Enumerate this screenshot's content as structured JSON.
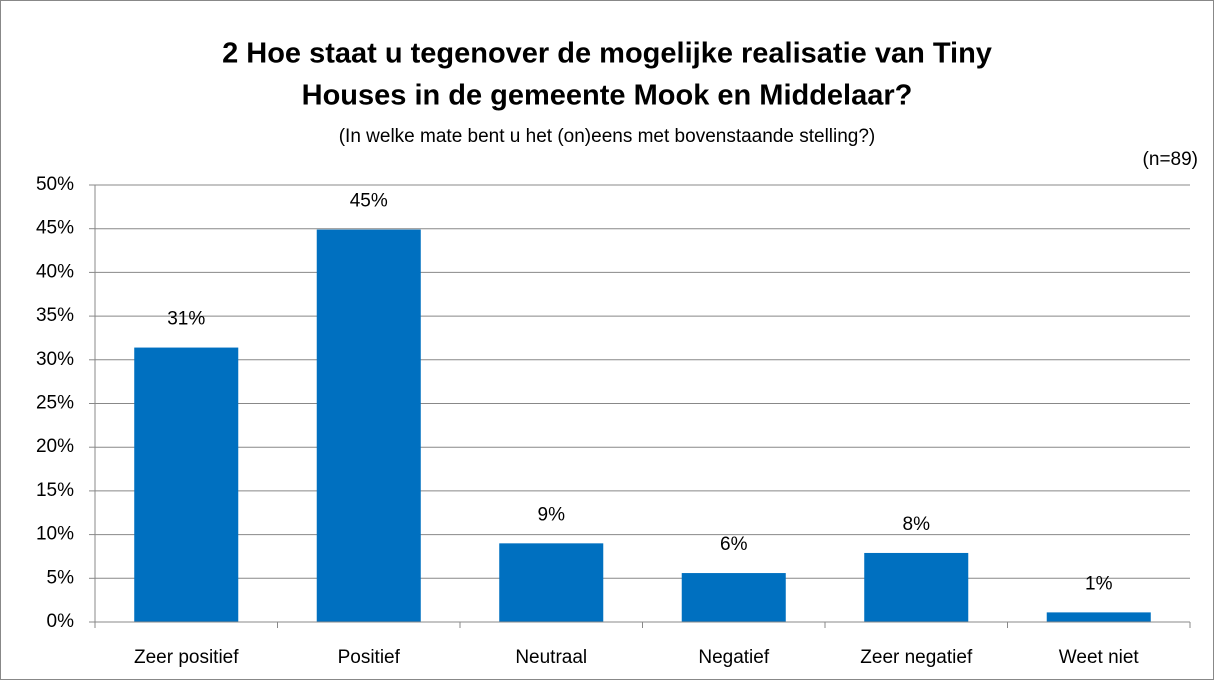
{
  "chart_data": {
    "type": "bar",
    "title": [
      "2 Hoe staat u tegenover de mogelijke realisatie van Tiny",
      "Houses in de gemeente Mook en Middelaar?"
    ],
    "subtitle": "(In welke mate bent u het (on)eens met bovenstaande stelling?)",
    "annotation": "(n=89)",
    "categories": [
      "Zeer positief",
      "Positief",
      "Neutraal",
      "Negatief",
      "Zeer negatief",
      "Weet niet"
    ],
    "values": [
      31.4,
      44.9,
      9.0,
      5.6,
      7.9,
      1.1
    ],
    "value_labels": [
      "31%",
      "45%",
      "9%",
      "6%",
      "8%",
      "1%"
    ],
    "color": "#0070c0",
    "ylim": [
      0,
      50
    ],
    "yticks": [
      {
        "value": 0,
        "label": "0%"
      },
      {
        "value": 5,
        "label": "5%"
      },
      {
        "value": 10,
        "label": "10%"
      },
      {
        "value": 15,
        "label": "15%"
      },
      {
        "value": 20,
        "label": "20%"
      },
      {
        "value": 25,
        "label": "25%"
      },
      {
        "value": 30,
        "label": "30%"
      },
      {
        "value": 35,
        "label": "35%"
      },
      {
        "value": 40,
        "label": "40%"
      },
      {
        "value": 45,
        "label": "45%"
      },
      {
        "value": 50,
        "label": "50%"
      }
    ],
    "grid": true
  }
}
